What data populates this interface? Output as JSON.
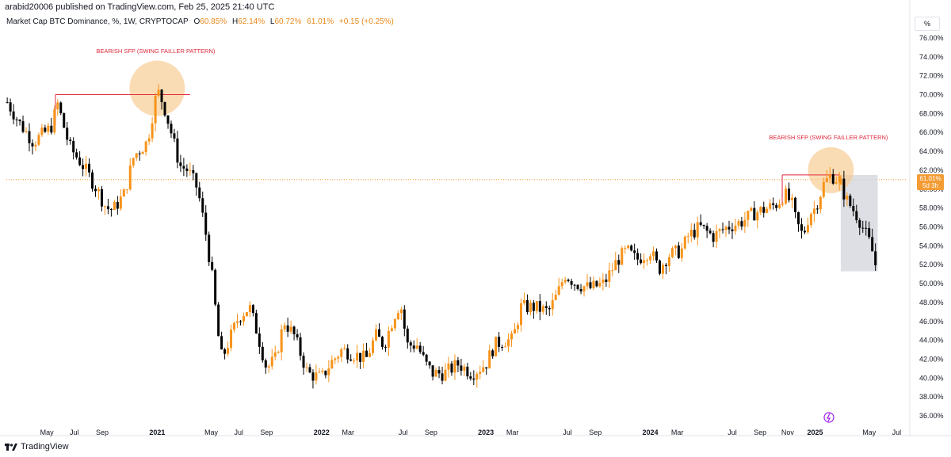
{
  "header": {
    "published": "arabid20006 published on TradingView.com, Feb 25, 2025 21:40 UTC"
  },
  "legend": {
    "title": "Market Cap BTC Dominance, %, 1W, CRYPTOCAP",
    "open_label": "O",
    "open": "60.85%",
    "high_label": "H",
    "high": "62.14%",
    "low_label": "L",
    "low": "60.72%",
    "close": "61.01%",
    "change": "+0.15 (+0.25%)"
  },
  "price_tag": {
    "value": "61.01%",
    "timer": "5d 3h"
  },
  "axis_unit": "%",
  "annotations": {
    "left": "BEARISH SFP (SWING FAILLER PATTERN)",
    "right": "BEARISH SFP (SWING FAILLER PATTERN)"
  },
  "footer": {
    "brand": "TradingView"
  },
  "colors": {
    "up": "#f7931a",
    "down": "#000000",
    "accent": "#f39c34",
    "annotation": "#e0273a"
  },
  "chart_data": {
    "type": "candlestick",
    "title": "Market Cap BTC Dominance, %, 1W, CRYPTOCAP",
    "ylim": [
      35,
      77
    ],
    "y_ticks": [
      "36.00%",
      "38.00%",
      "40.00%",
      "42.00%",
      "44.00%",
      "46.00%",
      "48.00%",
      "50.00%",
      "52.00%",
      "54.00%",
      "56.00%",
      "58.00%",
      "60.00%",
      "62.00%",
      "64.00%",
      "66.00%",
      "68.00%",
      "70.00%",
      "72.00%",
      "74.00%",
      "76.00%"
    ],
    "y_tick_values": [
      36,
      38,
      40,
      42,
      44,
      46,
      48,
      50,
      52,
      54,
      56,
      58,
      60,
      62,
      64,
      66,
      68,
      70,
      72,
      74,
      76
    ],
    "x_tick_labels": [
      "May",
      "Jul",
      "Sep",
      "2021",
      "May",
      "Jul",
      "Sep",
      "2022",
      "Mar",
      "Jul",
      "Sep",
      "2023",
      "Mar",
      "Jul",
      "Sep",
      "2024",
      "Mar",
      "Jul",
      "Sep",
      "Nov",
      "2025",
      "May",
      "Jul"
    ],
    "x_tick_dates": [
      "2020-05-01",
      "2020-07-01",
      "2020-09-01",
      "2021-01-01",
      "2021-05-01",
      "2021-07-01",
      "2021-09-01",
      "2022-01-01",
      "2022-03-01",
      "2022-07-01",
      "2022-09-01",
      "2023-01-01",
      "2023-03-01",
      "2023-07-01",
      "2023-09-01",
      "2024-01-01",
      "2024-03-01",
      "2024-07-01",
      "2024-09-01",
      "2024-11-01",
      "2025-01-01",
      "2025-05-01",
      "2025-07-01"
    ],
    "current_price": 61.01,
    "price_path": [
      [
        "2020-02-03",
        69.2
      ],
      [
        "2020-03-01",
        67.0
      ],
      [
        "2020-04-01",
        65.0
      ],
      [
        "2020-05-10",
        66.5
      ],
      [
        "2020-05-25",
        69.0
      ],
      [
        "2020-06-20",
        64.5
      ],
      [
        "2020-07-20",
        62.5
      ],
      [
        "2020-08-20",
        60.0
      ],
      [
        "2020-09-10",
        58.0
      ],
      [
        "2020-09-25",
        57.8
      ],
      [
        "2020-10-20",
        59.5
      ],
      [
        "2020-11-10",
        63.5
      ],
      [
        "2020-12-10",
        65.0
      ],
      [
        "2021-01-01",
        70.5
      ],
      [
        "2021-01-15",
        69.0
      ],
      [
        "2021-02-01",
        66.0
      ],
      [
        "2021-02-20",
        62.5
      ],
      [
        "2021-03-10",
        62.0
      ],
      [
        "2021-04-01",
        60.0
      ],
      [
        "2021-04-20",
        55.0
      ],
      [
        "2021-05-05",
        50.0
      ],
      [
        "2021-05-15",
        45.0
      ],
      [
        "2021-05-25",
        42.0
      ],
      [
        "2021-06-10",
        44.0
      ],
      [
        "2021-07-01",
        46.5
      ],
      [
        "2021-07-25",
        47.5
      ],
      [
        "2021-08-10",
        45.0
      ],
      [
        "2021-09-01",
        41.0
      ],
      [
        "2021-09-20",
        42.0
      ],
      [
        "2021-10-10",
        46.0
      ],
      [
        "2021-11-01",
        44.5
      ],
      [
        "2021-12-01",
        40.5
      ],
      [
        "2022-01-01",
        40.0
      ],
      [
        "2022-01-20",
        41.5
      ],
      [
        "2022-02-15",
        43.0
      ],
      [
        "2022-03-15",
        42.5
      ],
      [
        "2022-04-10",
        42.0
      ],
      [
        "2022-05-01",
        44.5
      ],
      [
        "2022-05-20",
        43.5
      ],
      [
        "2022-06-10",
        46.5
      ],
      [
        "2022-06-25",
        48.0
      ],
      [
        "2022-07-10",
        43.5
      ],
      [
        "2022-08-01",
        43.5
      ],
      [
        "2022-08-20",
        41.5
      ],
      [
        "2022-09-05",
        40.5
      ],
      [
        "2022-10-01",
        40.5
      ],
      [
        "2022-11-01",
        41.5
      ],
      [
        "2022-12-01",
        40.5
      ],
      [
        "2023-01-01",
        41.5
      ],
      [
        "2023-01-20",
        43.5
      ],
      [
        "2023-02-10",
        44.0
      ],
      [
        "2023-03-01",
        44.0
      ],
      [
        "2023-03-20",
        47.5
      ],
      [
        "2023-04-20",
        47.5
      ],
      [
        "2023-05-20",
        47.0
      ],
      [
        "2023-06-10",
        49.0
      ],
      [
        "2023-06-25",
        51.0
      ],
      [
        "2023-07-20",
        50.0
      ],
      [
        "2023-08-20",
        49.5
      ],
      [
        "2023-09-20",
        50.0
      ],
      [
        "2023-10-20",
        52.5
      ],
      [
        "2023-11-10",
        53.5
      ],
      [
        "2023-12-01",
        52.5
      ],
      [
        "2024-01-01",
        53.5
      ],
      [
        "2024-01-20",
        51.5
      ],
      [
        "2024-02-10",
        53.0
      ],
      [
        "2024-03-10",
        53.5
      ],
      [
        "2024-03-25",
        55.0
      ],
      [
        "2024-04-20",
        56.0
      ],
      [
        "2024-05-20",
        55.0
      ],
      [
        "2024-06-20",
        56.0
      ],
      [
        "2024-07-20",
        56.5
      ],
      [
        "2024-08-20",
        57.5
      ],
      [
        "2024-09-20",
        58.0
      ],
      [
        "2024-10-10",
        58.5
      ],
      [
        "2024-10-25",
        59.5
      ],
      [
        "2024-11-10",
        58.5
      ],
      [
        "2024-11-20",
        56.5
      ],
      [
        "2024-12-05",
        55.0
      ],
      [
        "2024-12-20",
        57.5
      ],
      [
        "2025-01-01",
        58.0
      ],
      [
        "2025-01-20",
        60.5
      ],
      [
        "2025-02-05",
        61.5
      ],
      [
        "2025-02-20",
        61.0
      ]
    ],
    "projection_path": [
      [
        "2025-02-27",
        60.5
      ],
      [
        "2025-03-10",
        59.0
      ],
      [
        "2025-03-24",
        58.0
      ],
      [
        "2025-04-07",
        57.0
      ],
      [
        "2025-04-21",
        55.5
      ],
      [
        "2025-05-05",
        54.0
      ],
      [
        "2025-05-15",
        52.0
      ]
    ],
    "horizontal_levels": [
      {
        "value": 70.0,
        "from": "2020-05-20",
        "to": "2021-03-15"
      },
      {
        "value": 61.5,
        "from": "2024-10-20",
        "to": "2025-02-25"
      }
    ],
    "projection_box": {
      "from": "2025-02-27",
      "to": "2025-05-20",
      "top": 61.5,
      "bottom": 51.3
    }
  }
}
